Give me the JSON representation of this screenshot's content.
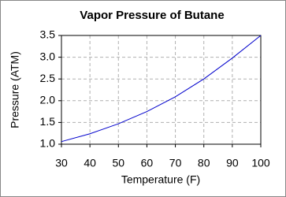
{
  "chart_data": {
    "type": "line",
    "title": "Vapor Pressure of Butane",
    "x_label": "Temperature (F)",
    "y_label": "Pressure (ATM)",
    "x": [
      30,
      40,
      50,
      60,
      70,
      80,
      90,
      100
    ],
    "series": [
      {
        "color": "#0000cc",
        "values": [
          1.06,
          1.24,
          1.47,
          1.75,
          2.09,
          2.5,
          2.98,
          3.5
        ]
      }
    ],
    "xlim": [
      30,
      100
    ],
    "xticks": [
      30,
      40,
      50,
      60,
      70,
      80,
      90,
      100
    ],
    "ylim": [
      1.0,
      3.5
    ],
    "yticks": [
      {
        "value": 1.0,
        "label": "1.0"
      },
      1.5,
      {
        "value": 2.0,
        "label": "2.0"
      },
      2.5,
      {
        "value": 3.0,
        "label": "3.0"
      },
      3.5
    ],
    "grid": true
  }
}
